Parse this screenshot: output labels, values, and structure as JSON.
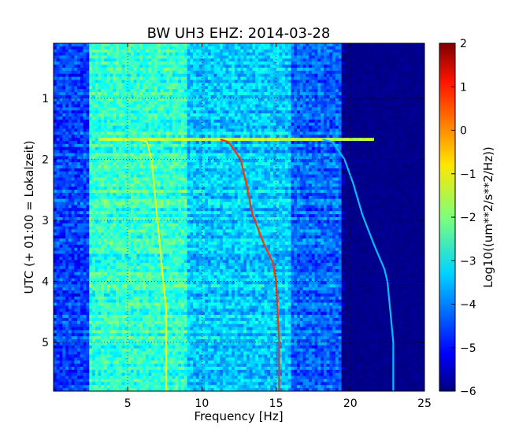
{
  "chart_data": {
    "type": "heatmap",
    "title": "BW UH3 EHZ: 2014-03-28",
    "xlabel": "Frequency [Hz]",
    "ylabel": "UTC (+ 01:00 = Lokalzeit)",
    "xlim": [
      0,
      25
    ],
    "ylim": [
      0.1,
      5.8
    ],
    "y_inverted": true,
    "grid": true,
    "x_ticks": [
      5,
      10,
      15,
      20,
      25
    ],
    "x_tick_labels": [
      "5",
      "10",
      "15",
      "20",
      "25"
    ],
    "y_ticks": [
      1,
      2,
      3,
      4,
      5
    ],
    "y_tick_labels": [
      "1",
      "2",
      "3",
      "4",
      "5"
    ],
    "colormap": "jet",
    "colorbar": {
      "label": "Log10((um**2/s**2/Hz))",
      "range": [
        -6,
        2
      ],
      "ticks": [
        2,
        1,
        0,
        -1,
        -2,
        -3,
        -4,
        -5,
        -6
      ],
      "tick_labels": [
        "2",
        "1",
        "0",
        "−1",
        "−2",
        "−3",
        "−4",
        "−5",
        "−6"
      ]
    },
    "background_levels": [
      {
        "freq": [
          0,
          2.5
        ],
        "value": -4.5
      },
      {
        "freq": [
          2.5,
          9
        ],
        "value": -2.6
      },
      {
        "freq": [
          9,
          16
        ],
        "value": -3.4
      },
      {
        "freq": [
          16,
          19.5
        ],
        "value": -4.2
      },
      {
        "freq": [
          19.5,
          25
        ],
        "value": -5.9
      }
    ],
    "horizontal_event": {
      "time": 1.68,
      "freq_range": [
        3,
        21.5
      ],
      "value": -1.5
    },
    "series": [
      {
        "x": [
          5.8,
          6.3,
          6.6,
          6.8,
          7.0,
          7.2,
          7.4,
          7.6,
          7.6
        ],
        "y": [
          1.68,
          1.72,
          2.0,
          2.5,
          3.0,
          3.5,
          4.0,
          4.5,
          5.8
        ],
        "value": -1.2
      },
      {
        "x": [
          11.3,
          11.8,
          12.6,
          13.0,
          13.4,
          14.2,
          14.8,
          15.0,
          15.1,
          15.2,
          15.2
        ],
        "y": [
          1.68,
          1.72,
          2.0,
          2.4,
          2.9,
          3.4,
          3.7,
          4.0,
          4.5,
          5.0,
          5.8
        ],
        "value": 0.6
      },
      {
        "x": [
          18.2,
          18.8,
          19.6,
          20.2,
          20.8,
          21.6,
          22.3,
          22.5,
          22.7,
          22.9,
          22.9
        ],
        "y": [
          1.68,
          1.72,
          2.0,
          2.4,
          2.9,
          3.4,
          3.8,
          4.0,
          4.5,
          5.0,
          5.8
        ],
        "value": -3.5
      }
    ]
  }
}
